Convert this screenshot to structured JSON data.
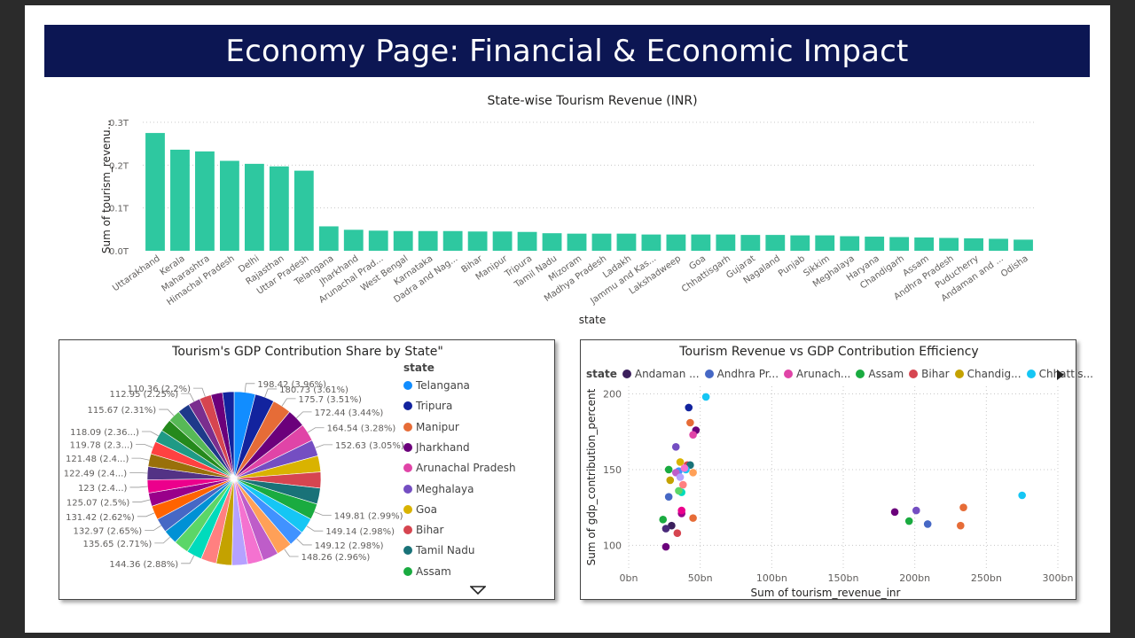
{
  "page_title": "Economy Page: Financial & Economic Impact",
  "chart_data": [
    {
      "type": "bar",
      "title": "State-wise Tourism Revenue (INR)",
      "xlabel": "state",
      "ylabel": "Sum of tourism_revenu...",
      "y_ticks": [
        "0.0T",
        "0.1T",
        "0.2T",
        "0.3T"
      ],
      "ylim": [
        0,
        0.3
      ],
      "color": "#2ec8a0",
      "grid": true,
      "categories": [
        "Uttarakhand",
        "Kerala",
        "Maharashtra",
        "Himachal Pradesh",
        "Delhi",
        "Rajasthan",
        "Uttar Pradesh",
        "Telangana",
        "Jharkhand",
        "Arunachal Prad...",
        "West Bengal",
        "Karnataka",
        "Dadra and Nag...",
        "Bihar",
        "Manipur",
        "Tripura",
        "Tamil Nadu",
        "Mizoram",
        "Madhya Pradesh",
        "Ladakh",
        "Jammu and Kas...",
        "Lakshadweep",
        "Goa",
        "Chhattisgarh",
        "Gujarat",
        "Nagaland",
        "Punjab",
        "Sikkim",
        "Meghalaya",
        "Haryana",
        "Chandigarh",
        "Assam",
        "Andhra Pradesh",
        "Puducherry",
        "Andaman and ...",
        "Odisha"
      ],
      "values": [
        0.275,
        0.236,
        0.232,
        0.21,
        0.203,
        0.197,
        0.187,
        0.057,
        0.049,
        0.047,
        0.046,
        0.046,
        0.046,
        0.045,
        0.045,
        0.044,
        0.041,
        0.04,
        0.04,
        0.04,
        0.038,
        0.038,
        0.038,
        0.038,
        0.037,
        0.037,
        0.036,
        0.036,
        0.034,
        0.033,
        0.032,
        0.031,
        0.03,
        0.029,
        0.028,
        0.026
      ]
    },
    {
      "type": "pie",
      "title": "Tourism's GDP Contribution Share by State\"",
      "legend_title": "state",
      "legend_placement": "right",
      "legend": [
        {
          "name": "Telangana",
          "color": "#118dff"
        },
        {
          "name": "Tripura",
          "color": "#12239e"
        },
        {
          "name": "Manipur",
          "color": "#e66c37"
        },
        {
          "name": "Jharkhand",
          "color": "#6b007b"
        },
        {
          "name": "Arunachal Pradesh",
          "color": "#e044a7"
        },
        {
          "name": "Meghalaya",
          "color": "#744ec2"
        },
        {
          "name": "Goa",
          "color": "#d9b300"
        },
        {
          "name": "Bihar",
          "color": "#d64550"
        },
        {
          "name": "Tamil Nadu",
          "color": "#197278"
        },
        {
          "name": "Assam",
          "color": "#1aab40"
        }
      ],
      "slices": [
        {
          "label": "198.42 (3.96%)",
          "value": 198.42,
          "color": "#118dff"
        },
        {
          "label": "180.73 (3.61%)",
          "value": 180.73,
          "color": "#12239e"
        },
        {
          "label": "175.7 (3.51%)",
          "value": 175.7,
          "color": "#e66c37"
        },
        {
          "label": "172.44 (3.44%)",
          "value": 172.44,
          "color": "#6b007b"
        },
        {
          "label": "164.54 (3.28%)",
          "value": 164.54,
          "color": "#e044a7"
        },
        {
          "label": "152.63 (3.05%)",
          "value": 152.63,
          "color": "#744ec2"
        },
        {
          "label": "",
          "value": 151.5,
          "color": "#d9b300"
        },
        {
          "label": "",
          "value": 150.5,
          "color": "#d64550"
        },
        {
          "label": "",
          "value": 150.2,
          "color": "#197278"
        },
        {
          "label": "149.81 (2.99%)",
          "value": 149.81,
          "color": "#1aab40"
        },
        {
          "label": "149.14 (2.98%)",
          "value": 149.14,
          "color": "#15c6f4"
        },
        {
          "label": "149.12 (2.98%)",
          "value": 149.12,
          "color": "#4092ff"
        },
        {
          "label": "148.26 (2.96%)",
          "value": 148.26,
          "color": "#ffa058"
        },
        {
          "label": "",
          "value": 147.8,
          "color": "#be5dc9"
        },
        {
          "label": "",
          "value": 147.1,
          "color": "#f472d0"
        },
        {
          "label": "",
          "value": 146.5,
          "color": "#b5a1ff"
        },
        {
          "label": "",
          "value": 145.8,
          "color": "#c4a200"
        },
        {
          "label": "",
          "value": 145.2,
          "color": "#ff8080"
        },
        {
          "label": "144.36 (2.88%)",
          "value": 144.36,
          "color": "#00dbbc"
        },
        {
          "label": "",
          "value": 140.2,
          "color": "#5bd667"
        },
        {
          "label": "135.65 (2.71%)",
          "value": 135.65,
          "color": "#0091d5"
        },
        {
          "label": "132.97 (2.65%)",
          "value": 132.97,
          "color": "#4668c5"
        },
        {
          "label": "131.42 (2.62%)",
          "value": 131.42,
          "color": "#ff6300"
        },
        {
          "label": "125.07 (2.5%)",
          "value": 125.07,
          "color": "#99008a"
        },
        {
          "label": "123 (2.4...)",
          "value": 123.0,
          "color": "#ec008c"
        },
        {
          "label": "122.49 (2.4...)",
          "value": 122.49,
          "color": "#533285"
        },
        {
          "label": "121.48 (2.4...)",
          "value": 121.48,
          "color": "#99700a"
        },
        {
          "label": "119.78 (2.3...)",
          "value": 119.78,
          "color": "#ff4141"
        },
        {
          "label": "118.09 (2.36...)",
          "value": 118.09,
          "color": "#1f9a85"
        },
        {
          "label": "",
          "value": 117.5,
          "color": "#25891c"
        },
        {
          "label": "115.67 (2.31%)",
          "value": 115.67,
          "color": "#57b956"
        },
        {
          "label": "",
          "value": 114.3,
          "color": "#1e3a8a"
        },
        {
          "label": "112.95 (2.25%)",
          "value": 112.95,
          "color": "#7a2e8e"
        },
        {
          "label": "110.36 (2.2%)",
          "value": 110.36,
          "color": "#d64550"
        },
        {
          "label": "",
          "value": 108.9,
          "color": "#6b007b"
        },
        {
          "label": "",
          "value": 107.5,
          "color": "#12239e"
        }
      ]
    },
    {
      "type": "scatter",
      "title": "Tourism Revenue vs GDP Contribution Efficiency",
      "xlabel": "Sum of tourism_revenue_inr",
      "ylabel": "Sum of gdp_contribution_percent",
      "x_ticks": [
        {
          "label": "0bn",
          "v": 0
        },
        {
          "label": "50bn",
          "v": 50
        },
        {
          "label": "100bn",
          "v": 100
        },
        {
          "label": "150bn",
          "v": 150
        },
        {
          "label": "200bn",
          "v": 200
        },
        {
          "label": "250bn",
          "v": 250
        },
        {
          "label": "300bn",
          "v": 300
        }
      ],
      "y_ticks": [
        {
          "label": "100",
          "v": 100
        },
        {
          "label": "150",
          "v": 150
        },
        {
          "label": "200",
          "v": 200
        }
      ],
      "xlim": [
        0,
        300
      ],
      "ylim": [
        85,
        205
      ],
      "legend_title": "state",
      "legend_placement": "top",
      "legend": [
        {
          "name": "Andaman ...",
          "color": "#3b1f5c"
        },
        {
          "name": "Andhra Pr...",
          "color": "#4668c5"
        },
        {
          "name": "Arunach...",
          "color": "#e044a7"
        },
        {
          "name": "Assam",
          "color": "#1aab40"
        },
        {
          "name": "Bihar",
          "color": "#d64550"
        },
        {
          "name": "Chandig...",
          "color": "#c4a200"
        },
        {
          "name": "Chhattis...",
          "color": "#15c6f4"
        }
      ],
      "points": [
        {
          "x": 54,
          "y": 198,
          "color": "#15c6f4"
        },
        {
          "x": 42,
          "y": 191,
          "color": "#12239e"
        },
        {
          "x": 43,
          "y": 181,
          "color": "#e66c37"
        },
        {
          "x": 47,
          "y": 176,
          "color": "#6b007b"
        },
        {
          "x": 45,
          "y": 173,
          "color": "#e044a7"
        },
        {
          "x": 33,
          "y": 165,
          "color": "#744ec2"
        },
        {
          "x": 36,
          "y": 155,
          "color": "#d9b300"
        },
        {
          "x": 41,
          "y": 153,
          "color": "#d64550"
        },
        {
          "x": 43,
          "y": 153,
          "color": "#197278"
        },
        {
          "x": 28,
          "y": 150,
          "color": "#1aab40"
        },
        {
          "x": 40,
          "y": 150,
          "color": "#15c6f4"
        },
        {
          "x": 35,
          "y": 149,
          "color": "#4092ff"
        },
        {
          "x": 45,
          "y": 148,
          "color": "#ffa058"
        },
        {
          "x": 33,
          "y": 148,
          "color": "#be5dc9"
        },
        {
          "x": 39,
          "y": 151,
          "color": "#f472d0"
        },
        {
          "x": 36,
          "y": 145,
          "color": "#b5a1ff"
        },
        {
          "x": 29,
          "y": 143,
          "color": "#c4a200"
        },
        {
          "x": 38,
          "y": 140,
          "color": "#ff8080"
        },
        {
          "x": 37,
          "y": 135,
          "color": "#00dbbc"
        },
        {
          "x": 35,
          "y": 136,
          "color": "#5bd667"
        },
        {
          "x": 28,
          "y": 132,
          "color": "#4668c5"
        },
        {
          "x": 45,
          "y": 118,
          "color": "#e66c37"
        },
        {
          "x": 37,
          "y": 121,
          "color": "#99008a"
        },
        {
          "x": 37,
          "y": 123,
          "color": "#ec008c"
        },
        {
          "x": 24,
          "y": 117,
          "color": "#1aab40"
        },
        {
          "x": 30,
          "y": 113,
          "color": "#3b1f5c"
        },
        {
          "x": 26,
          "y": 111,
          "color": "#4a2a7a"
        },
        {
          "x": 34,
          "y": 108,
          "color": "#d64550"
        },
        {
          "x": 26,
          "y": 99,
          "color": "#6b007b"
        },
        {
          "x": 275,
          "y": 133,
          "color": "#15c6f4"
        },
        {
          "x": 234,
          "y": 125,
          "color": "#e66c37"
        },
        {
          "x": 201,
          "y": 123,
          "color": "#744ec2"
        },
        {
          "x": 186,
          "y": 122,
          "color": "#6b007b"
        },
        {
          "x": 196,
          "y": 116,
          "color": "#1aab40"
        },
        {
          "x": 209,
          "y": 114,
          "color": "#4668c5"
        },
        {
          "x": 232,
          "y": 113,
          "color": "#e66c37"
        }
      ]
    }
  ]
}
